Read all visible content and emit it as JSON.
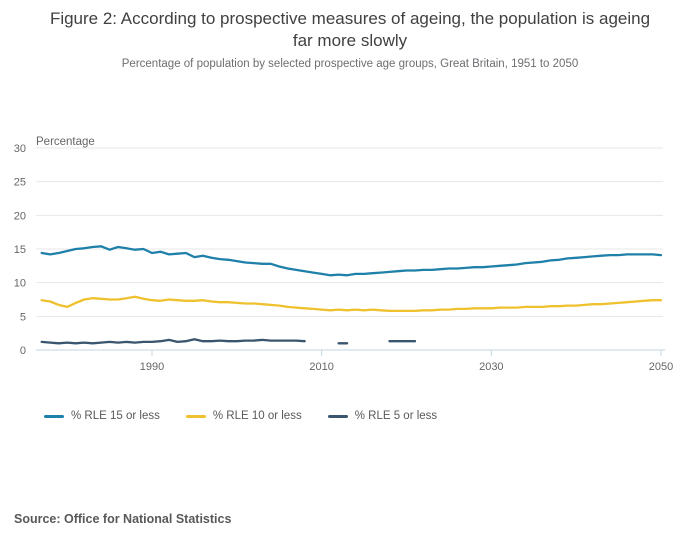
{
  "header": {
    "title": "Figure 2: According to prospective measures of ageing, the population is ageing far more slowly",
    "subtitle": "Percentage of population by selected prospective age groups, Great Britain, 1951 to 2050"
  },
  "footer": {
    "source": "Source: Office for National Statistics"
  },
  "chart_data": {
    "type": "line",
    "title": "Figure 2: According to prospective measures of ageing, the population is ageing far more slowly",
    "subtitle": "Percentage of population by selected prospective age groups, Great Britain, 1951 to 2050",
    "axis_label": "Percentage",
    "xlabel": "",
    "ylabel": "Percentage",
    "ylim": [
      0,
      30
    ],
    "y_ticks": [
      0,
      5,
      10,
      15,
      20,
      25,
      30
    ],
    "x_ticks": [
      "1990",
      "2010",
      "2030",
      "2050"
    ],
    "x_tick_years": [
      1990,
      2010,
      2030,
      2050
    ],
    "grid": true,
    "legend_position": "bottom",
    "colors": {
      "grid": "#e7e7e7",
      "axis": "#c3d6e0",
      "tick_text": "#666666",
      "title_text": "#414042",
      "source_text": "#595959"
    },
    "series": [
      {
        "name": "% RLE 15 or less",
        "color": "#1f80a9",
        "segments": [
          [
            [
              1977,
              14.4
            ],
            [
              1978,
              14.2
            ],
            [
              1979,
              14.4
            ],
            [
              1980,
              14.7
            ],
            [
              1981,
              15.0
            ],
            [
              1982,
              15.1
            ],
            [
              1983,
              15.3
            ],
            [
              1984,
              15.4
            ],
            [
              1985,
              14.9
            ],
            [
              1986,
              15.3
            ],
            [
              1987,
              15.1
            ],
            [
              1988,
              14.9
            ],
            [
              1989,
              15.0
            ],
            [
              1990,
              14.4
            ],
            [
              1991,
              14.6
            ],
            [
              1992,
              14.2
            ],
            [
              1993,
              14.3
            ],
            [
              1994,
              14.4
            ],
            [
              1995,
              13.8
            ],
            [
              1996,
              14.0
            ],
            [
              1997,
              13.7
            ],
            [
              1998,
              13.5
            ],
            [
              1999,
              13.4
            ],
            [
              2000,
              13.2
            ],
            [
              2001,
              13.0
            ],
            [
              2002,
              12.9
            ],
            [
              2003,
              12.8
            ],
            [
              2004,
              12.8
            ],
            [
              2005,
              12.4
            ],
            [
              2006,
              12.1
            ],
            [
              2007,
              11.9
            ],
            [
              2008,
              11.7
            ],
            [
              2009,
              11.5
            ],
            [
              2010,
              11.3
            ],
            [
              2011,
              11.1
            ],
            [
              2012,
              11.2
            ],
            [
              2013,
              11.1
            ],
            [
              2014,
              11.3
            ],
            [
              2015,
              11.3
            ],
            [
              2016,
              11.4
            ],
            [
              2017,
              11.5
            ],
            [
              2018,
              11.6
            ],
            [
              2019,
              11.7
            ],
            [
              2020,
              11.8
            ],
            [
              2021,
              11.8
            ],
            [
              2022,
              11.9
            ],
            [
              2023,
              11.9
            ],
            [
              2024,
              12.0
            ],
            [
              2025,
              12.1
            ],
            [
              2026,
              12.1
            ],
            [
              2027,
              12.2
            ],
            [
              2028,
              12.3
            ],
            [
              2029,
              12.3
            ],
            [
              2030,
              12.4
            ],
            [
              2031,
              12.5
            ],
            [
              2032,
              12.6
            ],
            [
              2033,
              12.7
            ],
            [
              2034,
              12.9
            ],
            [
              2035,
              13.0
            ],
            [
              2036,
              13.1
            ],
            [
              2037,
              13.3
            ],
            [
              2038,
              13.4
            ],
            [
              2039,
              13.6
            ],
            [
              2040,
              13.7
            ],
            [
              2041,
              13.8
            ],
            [
              2042,
              13.9
            ],
            [
              2043,
              14.0
            ],
            [
              2044,
              14.1
            ],
            [
              2045,
              14.1
            ],
            [
              2046,
              14.2
            ],
            [
              2047,
              14.2
            ],
            [
              2048,
              14.2
            ],
            [
              2049,
              14.2
            ],
            [
              2050,
              14.1
            ]
          ]
        ]
      },
      {
        "name": "% RLE 10 or less",
        "color": "#efc12e",
        "segments": [
          [
            [
              1977,
              7.4
            ],
            [
              1978,
              7.2
            ],
            [
              1979,
              6.7
            ],
            [
              1980,
              6.4
            ],
            [
              1981,
              7.0
            ],
            [
              1982,
              7.5
            ],
            [
              1983,
              7.7
            ],
            [
              1984,
              7.6
            ],
            [
              1985,
              7.5
            ],
            [
              1986,
              7.5
            ],
            [
              1987,
              7.7
            ],
            [
              1988,
              7.9
            ],
            [
              1989,
              7.6
            ],
            [
              1990,
              7.4
            ],
            [
              1991,
              7.3
            ],
            [
              1992,
              7.5
            ],
            [
              1993,
              7.4
            ],
            [
              1994,
              7.3
            ],
            [
              1995,
              7.3
            ],
            [
              1996,
              7.4
            ],
            [
              1997,
              7.2
            ],
            [
              1998,
              7.1
            ],
            [
              1999,
              7.1
            ],
            [
              2000,
              7.0
            ],
            [
              2001,
              6.9
            ],
            [
              2002,
              6.9
            ],
            [
              2003,
              6.8
            ],
            [
              2004,
              6.7
            ],
            [
              2005,
              6.6
            ],
            [
              2006,
              6.4
            ],
            [
              2007,
              6.3
            ],
            [
              2008,
              6.2
            ],
            [
              2009,
              6.1
            ],
            [
              2010,
              6.0
            ],
            [
              2011,
              5.9
            ],
            [
              2012,
              6.0
            ],
            [
              2013,
              5.9
            ],
            [
              2014,
              6.0
            ],
            [
              2015,
              5.9
            ],
            [
              2016,
              6.0
            ],
            [
              2017,
              5.9
            ],
            [
              2018,
              5.8
            ],
            [
              2019,
              5.8
            ],
            [
              2020,
              5.8
            ],
            [
              2021,
              5.8
            ],
            [
              2022,
              5.9
            ],
            [
              2023,
              5.9
            ],
            [
              2024,
              6.0
            ],
            [
              2025,
              6.0
            ],
            [
              2026,
              6.1
            ],
            [
              2027,
              6.1
            ],
            [
              2028,
              6.2
            ],
            [
              2029,
              6.2
            ],
            [
              2030,
              6.2
            ],
            [
              2031,
              6.3
            ],
            [
              2032,
              6.3
            ],
            [
              2033,
              6.3
            ],
            [
              2034,
              6.4
            ],
            [
              2035,
              6.4
            ],
            [
              2036,
              6.4
            ],
            [
              2037,
              6.5
            ],
            [
              2038,
              6.5
            ],
            [
              2039,
              6.6
            ],
            [
              2040,
              6.6
            ],
            [
              2041,
              6.7
            ],
            [
              2042,
              6.8
            ],
            [
              2043,
              6.8
            ],
            [
              2044,
              6.9
            ],
            [
              2045,
              7.0
            ],
            [
              2046,
              7.1
            ],
            [
              2047,
              7.2
            ],
            [
              2048,
              7.3
            ],
            [
              2049,
              7.4
            ],
            [
              2050,
              7.4
            ]
          ]
        ]
      },
      {
        "name": "% RLE 5 or less",
        "color": "#3a556e",
        "segments": [
          [
            [
              1977,
              1.2
            ],
            [
              1978,
              1.1
            ],
            [
              1979,
              1.0
            ],
            [
              1980,
              1.1
            ],
            [
              1981,
              1.0
            ],
            [
              1982,
              1.1
            ],
            [
              1983,
              1.0
            ],
            [
              1984,
              1.1
            ],
            [
              1985,
              1.2
            ],
            [
              1986,
              1.1
            ],
            [
              1987,
              1.2
            ],
            [
              1988,
              1.1
            ],
            [
              1989,
              1.2
            ],
            [
              1990,
              1.2
            ],
            [
              1991,
              1.3
            ],
            [
              1992,
              1.5
            ],
            [
              1993,
              1.2
            ],
            [
              1994,
              1.3
            ],
            [
              1995,
              1.6
            ],
            [
              1996,
              1.3
            ],
            [
              1997,
              1.3
            ],
            [
              1998,
              1.4
            ],
            [
              1999,
              1.3
            ],
            [
              2000,
              1.3
            ],
            [
              2001,
              1.4
            ],
            [
              2002,
              1.4
            ],
            [
              2003,
              1.5
            ],
            [
              2004,
              1.4
            ],
            [
              2005,
              1.4
            ],
            [
              2006,
              1.4
            ],
            [
              2007,
              1.4
            ],
            [
              2008,
              1.3
            ]
          ],
          [
            [
              2012,
              1.0
            ],
            [
              2013,
              1.0
            ]
          ],
          [
            [
              2018,
              1.3
            ],
            [
              2019,
              1.3
            ],
            [
              2020,
              1.3
            ],
            [
              2021,
              1.3
            ]
          ]
        ]
      }
    ]
  }
}
